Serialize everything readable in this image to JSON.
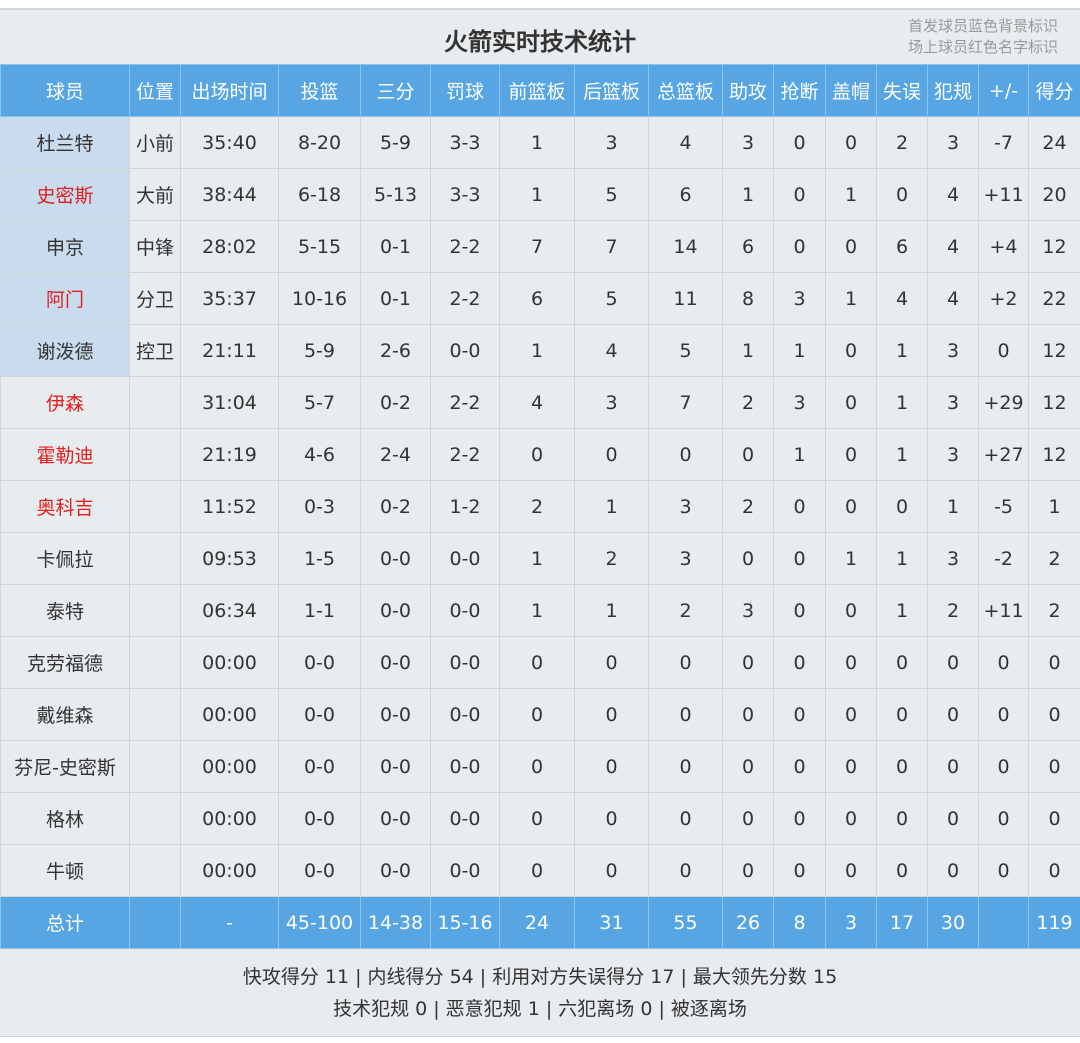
{
  "title": "火箭实时技术统计",
  "legend": [
    "首发球员蓝色背景标识",
    "场上球员红色名字标识"
  ],
  "colors": {
    "header_bg": "#57a5e3",
    "starter_bg": "#c9dcee",
    "on_court_name": "#e02020"
  },
  "columns": [
    "球员",
    "位置",
    "出场时间",
    "投篮",
    "三分",
    "罚球",
    "前篮板",
    "后篮板",
    "总篮板",
    "助攻",
    "抢断",
    "盖帽",
    "失误",
    "犯规",
    "+/-",
    "得分"
  ],
  "players": [
    {
      "cells": [
        "杜兰特",
        "小前",
        "35:40",
        "8-20",
        "5-9",
        "3-3",
        "1",
        "3",
        "4",
        "3",
        "0",
        "0",
        "2",
        "3",
        "-7",
        "24"
      ],
      "starter": true,
      "on_court": false
    },
    {
      "cells": [
        "史密斯",
        "大前",
        "38:44",
        "6-18",
        "5-13",
        "3-3",
        "1",
        "5",
        "6",
        "1",
        "0",
        "1",
        "0",
        "4",
        "+11",
        "20"
      ],
      "starter": true,
      "on_court": true
    },
    {
      "cells": [
        "申京",
        "中锋",
        "28:02",
        "5-15",
        "0-1",
        "2-2",
        "7",
        "7",
        "14",
        "6",
        "0",
        "0",
        "6",
        "4",
        "+4",
        "12"
      ],
      "starter": true,
      "on_court": false
    },
    {
      "cells": [
        "阿门",
        "分卫",
        "35:37",
        "10-16",
        "0-1",
        "2-2",
        "6",
        "5",
        "11",
        "8",
        "3",
        "1",
        "4",
        "4",
        "+2",
        "22"
      ],
      "starter": true,
      "on_court": true
    },
    {
      "cells": [
        "谢泼德",
        "控卫",
        "21:11",
        "5-9",
        "2-6",
        "0-0",
        "1",
        "4",
        "5",
        "1",
        "1",
        "0",
        "1",
        "3",
        "0",
        "12"
      ],
      "starter": true,
      "on_court": false
    },
    {
      "cells": [
        "伊森",
        "",
        "31:04",
        "5-7",
        "0-2",
        "2-2",
        "4",
        "3",
        "7",
        "2",
        "3",
        "0",
        "1",
        "3",
        "+29",
        "12"
      ],
      "starter": false,
      "on_court": true
    },
    {
      "cells": [
        "霍勒迪",
        "",
        "21:19",
        "4-6",
        "2-4",
        "2-2",
        "0",
        "0",
        "0",
        "0",
        "1",
        "0",
        "1",
        "3",
        "+27",
        "12"
      ],
      "starter": false,
      "on_court": true
    },
    {
      "cells": [
        "奥科吉",
        "",
        "11:52",
        "0-3",
        "0-2",
        "1-2",
        "2",
        "1",
        "3",
        "2",
        "0",
        "0",
        "0",
        "1",
        "-5",
        "1"
      ],
      "starter": false,
      "on_court": true
    },
    {
      "cells": [
        "卡佩拉",
        "",
        "09:53",
        "1-5",
        "0-0",
        "0-0",
        "1",
        "2",
        "3",
        "0",
        "0",
        "1",
        "1",
        "3",
        "-2",
        "2"
      ],
      "starter": false,
      "on_court": false
    },
    {
      "cells": [
        "泰特",
        "",
        "06:34",
        "1-1",
        "0-0",
        "0-0",
        "1",
        "1",
        "2",
        "3",
        "0",
        "0",
        "1",
        "2",
        "+11",
        "2"
      ],
      "starter": false,
      "on_court": false
    },
    {
      "cells": [
        "克劳福德",
        "",
        "00:00",
        "0-0",
        "0-0",
        "0-0",
        "0",
        "0",
        "0",
        "0",
        "0",
        "0",
        "0",
        "0",
        "0",
        "0"
      ],
      "starter": false,
      "on_court": false
    },
    {
      "cells": [
        "戴维森",
        "",
        "00:00",
        "0-0",
        "0-0",
        "0-0",
        "0",
        "0",
        "0",
        "0",
        "0",
        "0",
        "0",
        "0",
        "0",
        "0"
      ],
      "starter": false,
      "on_court": false
    },
    {
      "cells": [
        "芬尼-史密斯",
        "",
        "00:00",
        "0-0",
        "0-0",
        "0-0",
        "0",
        "0",
        "0",
        "0",
        "0",
        "0",
        "0",
        "0",
        "0",
        "0"
      ],
      "starter": false,
      "on_court": false
    },
    {
      "cells": [
        "格林",
        "",
        "00:00",
        "0-0",
        "0-0",
        "0-0",
        "0",
        "0",
        "0",
        "0",
        "0",
        "0",
        "0",
        "0",
        "0",
        "0"
      ],
      "starter": false,
      "on_court": false
    },
    {
      "cells": [
        "牛顿",
        "",
        "00:00",
        "0-0",
        "0-0",
        "0-0",
        "0",
        "0",
        "0",
        "0",
        "0",
        "0",
        "0",
        "0",
        "0",
        "0"
      ],
      "starter": false,
      "on_court": false
    }
  ],
  "totals": [
    "总计",
    "",
    "-",
    "45-100",
    "14-38",
    "15-16",
    "24",
    "31",
    "55",
    "26",
    "8",
    "3",
    "17",
    "30",
    "",
    "119"
  ],
  "footer": [
    "快攻得分 11 | 内线得分 54 | 利用对方失误得分 17 | 最大领先分数 15",
    "技术犯规 0 | 恶意犯规 1 | 六犯离场 0 | 被逐离场"
  ]
}
